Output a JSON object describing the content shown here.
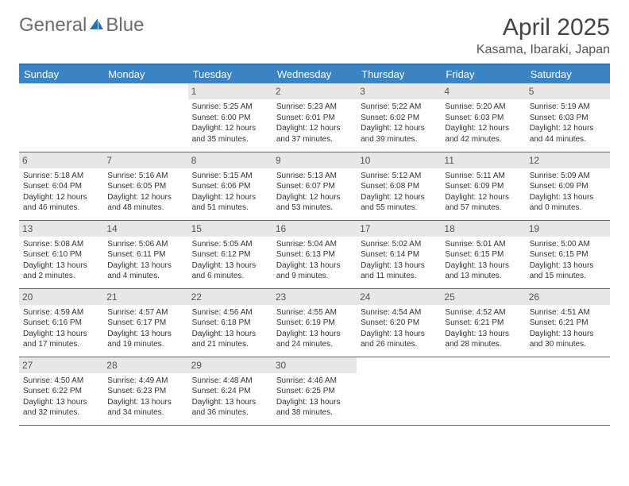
{
  "logo": {
    "part1": "General",
    "part2": "Blue"
  },
  "title": "April 2025",
  "location": "Kasama, Ibaraki, Japan",
  "colors": {
    "header_bg": "#3b84c4",
    "header_text": "#ffffff",
    "rule": "#2f6fa8",
    "daybar_bg": "#e7e7e7",
    "daybar_text": "#555555",
    "body_text": "#333333",
    "logo_triangle": "#2f6fa8"
  },
  "typography": {
    "title_fontsize": 30,
    "location_fontsize": 16,
    "weekday_fontsize": 13,
    "daynum_fontsize": 12,
    "body_fontsize": 10
  },
  "weekdays": [
    "Sunday",
    "Monday",
    "Tuesday",
    "Wednesday",
    "Thursday",
    "Friday",
    "Saturday"
  ],
  "weeks": [
    [
      {
        "n": "",
        "sr": "",
        "ss": "",
        "dl": ""
      },
      {
        "n": "",
        "sr": "",
        "ss": "",
        "dl": ""
      },
      {
        "n": "1",
        "sr": "Sunrise: 5:25 AM",
        "ss": "Sunset: 6:00 PM",
        "dl": "Daylight: 12 hours and 35 minutes."
      },
      {
        "n": "2",
        "sr": "Sunrise: 5:23 AM",
        "ss": "Sunset: 6:01 PM",
        "dl": "Daylight: 12 hours and 37 minutes."
      },
      {
        "n": "3",
        "sr": "Sunrise: 5:22 AM",
        "ss": "Sunset: 6:02 PM",
        "dl": "Daylight: 12 hours and 39 minutes."
      },
      {
        "n": "4",
        "sr": "Sunrise: 5:20 AM",
        "ss": "Sunset: 6:03 PM",
        "dl": "Daylight: 12 hours and 42 minutes."
      },
      {
        "n": "5",
        "sr": "Sunrise: 5:19 AM",
        "ss": "Sunset: 6:03 PM",
        "dl": "Daylight: 12 hours and 44 minutes."
      }
    ],
    [
      {
        "n": "6",
        "sr": "Sunrise: 5:18 AM",
        "ss": "Sunset: 6:04 PM",
        "dl": "Daylight: 12 hours and 46 minutes."
      },
      {
        "n": "7",
        "sr": "Sunrise: 5:16 AM",
        "ss": "Sunset: 6:05 PM",
        "dl": "Daylight: 12 hours and 48 minutes."
      },
      {
        "n": "8",
        "sr": "Sunrise: 5:15 AM",
        "ss": "Sunset: 6:06 PM",
        "dl": "Daylight: 12 hours and 51 minutes."
      },
      {
        "n": "9",
        "sr": "Sunrise: 5:13 AM",
        "ss": "Sunset: 6:07 PM",
        "dl": "Daylight: 12 hours and 53 minutes."
      },
      {
        "n": "10",
        "sr": "Sunrise: 5:12 AM",
        "ss": "Sunset: 6:08 PM",
        "dl": "Daylight: 12 hours and 55 minutes."
      },
      {
        "n": "11",
        "sr": "Sunrise: 5:11 AM",
        "ss": "Sunset: 6:09 PM",
        "dl": "Daylight: 12 hours and 57 minutes."
      },
      {
        "n": "12",
        "sr": "Sunrise: 5:09 AM",
        "ss": "Sunset: 6:09 PM",
        "dl": "Daylight: 13 hours and 0 minutes."
      }
    ],
    [
      {
        "n": "13",
        "sr": "Sunrise: 5:08 AM",
        "ss": "Sunset: 6:10 PM",
        "dl": "Daylight: 13 hours and 2 minutes."
      },
      {
        "n": "14",
        "sr": "Sunrise: 5:06 AM",
        "ss": "Sunset: 6:11 PM",
        "dl": "Daylight: 13 hours and 4 minutes."
      },
      {
        "n": "15",
        "sr": "Sunrise: 5:05 AM",
        "ss": "Sunset: 6:12 PM",
        "dl": "Daylight: 13 hours and 6 minutes."
      },
      {
        "n": "16",
        "sr": "Sunrise: 5:04 AM",
        "ss": "Sunset: 6:13 PM",
        "dl": "Daylight: 13 hours and 9 minutes."
      },
      {
        "n": "17",
        "sr": "Sunrise: 5:02 AM",
        "ss": "Sunset: 6:14 PM",
        "dl": "Daylight: 13 hours and 11 minutes."
      },
      {
        "n": "18",
        "sr": "Sunrise: 5:01 AM",
        "ss": "Sunset: 6:15 PM",
        "dl": "Daylight: 13 hours and 13 minutes."
      },
      {
        "n": "19",
        "sr": "Sunrise: 5:00 AM",
        "ss": "Sunset: 6:15 PM",
        "dl": "Daylight: 13 hours and 15 minutes."
      }
    ],
    [
      {
        "n": "20",
        "sr": "Sunrise: 4:59 AM",
        "ss": "Sunset: 6:16 PM",
        "dl": "Daylight: 13 hours and 17 minutes."
      },
      {
        "n": "21",
        "sr": "Sunrise: 4:57 AM",
        "ss": "Sunset: 6:17 PM",
        "dl": "Daylight: 13 hours and 19 minutes."
      },
      {
        "n": "22",
        "sr": "Sunrise: 4:56 AM",
        "ss": "Sunset: 6:18 PM",
        "dl": "Daylight: 13 hours and 21 minutes."
      },
      {
        "n": "23",
        "sr": "Sunrise: 4:55 AM",
        "ss": "Sunset: 6:19 PM",
        "dl": "Daylight: 13 hours and 24 minutes."
      },
      {
        "n": "24",
        "sr": "Sunrise: 4:54 AM",
        "ss": "Sunset: 6:20 PM",
        "dl": "Daylight: 13 hours and 26 minutes."
      },
      {
        "n": "25",
        "sr": "Sunrise: 4:52 AM",
        "ss": "Sunset: 6:21 PM",
        "dl": "Daylight: 13 hours and 28 minutes."
      },
      {
        "n": "26",
        "sr": "Sunrise: 4:51 AM",
        "ss": "Sunset: 6:21 PM",
        "dl": "Daylight: 13 hours and 30 minutes."
      }
    ],
    [
      {
        "n": "27",
        "sr": "Sunrise: 4:50 AM",
        "ss": "Sunset: 6:22 PM",
        "dl": "Daylight: 13 hours and 32 minutes."
      },
      {
        "n": "28",
        "sr": "Sunrise: 4:49 AM",
        "ss": "Sunset: 6:23 PM",
        "dl": "Daylight: 13 hours and 34 minutes."
      },
      {
        "n": "29",
        "sr": "Sunrise: 4:48 AM",
        "ss": "Sunset: 6:24 PM",
        "dl": "Daylight: 13 hours and 36 minutes."
      },
      {
        "n": "30",
        "sr": "Sunrise: 4:46 AM",
        "ss": "Sunset: 6:25 PM",
        "dl": "Daylight: 13 hours and 38 minutes."
      },
      {
        "n": "",
        "sr": "",
        "ss": "",
        "dl": ""
      },
      {
        "n": "",
        "sr": "",
        "ss": "",
        "dl": ""
      },
      {
        "n": "",
        "sr": "",
        "ss": "",
        "dl": ""
      }
    ]
  ]
}
